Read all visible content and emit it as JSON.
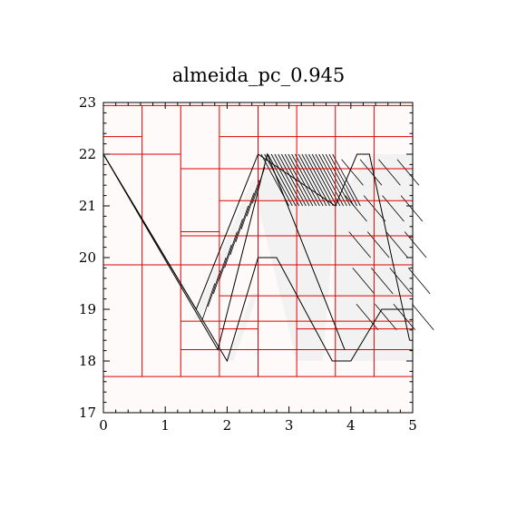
{
  "chart_data": {
    "type": "line",
    "title": "almeida_pc_0.945",
    "xlabel": "",
    "ylabel": "",
    "xlim": [
      0,
      5
    ],
    "ylim": [
      17,
      23
    ],
    "x_ticks": [
      "0",
      "1",
      "2",
      "3",
      "4",
      "5"
    ],
    "y_ticks": [
      "17",
      "18",
      "19",
      "20",
      "21",
      "22",
      "23"
    ],
    "grid": false,
    "legend": "none",
    "colors": {
      "cells": "#dd0000",
      "curves": "#000000",
      "background": "#fffafa",
      "band_fill": "#f2f2f2"
    },
    "cell_boundaries": {
      "vertical_x": [
        0.625,
        1.25,
        1.875,
        2.5,
        3.125,
        3.75,
        4.375
      ],
      "horizontal_segments": [
        {
          "y": 22.94,
          "x": [
            0,
            5
          ]
        },
        {
          "y": 22.34,
          "x": [
            0,
            0.625
          ]
        },
        {
          "y": 22.0,
          "x": [
            0,
            1.25
          ]
        },
        {
          "y": 22.34,
          "x": [
            1.875,
            5
          ]
        },
        {
          "y": 21.72,
          "x": [
            1.25,
            5
          ]
        },
        {
          "y": 21.1,
          "x": [
            1.875,
            5
          ]
        },
        {
          "y": 20.5,
          "x": [
            1.25,
            1.875
          ]
        },
        {
          "y": 20.42,
          "x": [
            1.25,
            5
          ]
        },
        {
          "y": 19.86,
          "x": [
            0,
            5
          ]
        },
        {
          "y": 19.26,
          "x": [
            1.875,
            5
          ]
        },
        {
          "y": 18.77,
          "x": [
            1.25,
            5
          ]
        },
        {
          "y": 18.62,
          "x": [
            1.875,
            2.5
          ]
        },
        {
          "y": 18.62,
          "x": [
            3.125,
            5
          ]
        },
        {
          "y": 18.22,
          "x": [
            1.25,
            5
          ]
        },
        {
          "y": 17.7,
          "x": [
            0,
            5
          ]
        }
      ]
    },
    "series": [
      {
        "x": [
          0,
          1.5,
          2.5,
          3.75
        ],
        "y": [
          22.0,
          19.0,
          22.0,
          21.0
        ]
      },
      {
        "x": [
          0,
          1.85,
          2.65,
          3.9
        ],
        "y": [
          22.0,
          18.22,
          22.0,
          18.22
        ]
      },
      {
        "x": [
          0,
          2.0,
          2.5,
          2.8,
          3.7,
          3.75
        ],
        "y": [
          22.0,
          18.0,
          20.0,
          20.0,
          18.0,
          18.0
        ]
      },
      {
        "x": [
          3.75,
          4.1,
          4.3,
          4.95
        ],
        "y": [
          21.0,
          22.0,
          22.0,
          18.4
        ]
      },
      {
        "x": [
          3.75,
          4.0,
          4.5,
          5.0
        ],
        "y": [
          18.0,
          18.0,
          19.0,
          19.0
        ]
      }
    ],
    "bands": [
      {
        "x": [
          1.45,
          1.55,
          2.5,
          2.4
        ],
        "y": [
          18.8,
          18.8,
          21.5,
          21.5
        ]
      },
      {
        "x": [
          2.0,
          2.1,
          2.5,
          2.4
        ],
        "y": [
          18.0,
          18.0,
          19.3,
          19.3
        ]
      },
      {
        "x": [
          2.5,
          3.5,
          3.75,
          3.55,
          3.125,
          2.5
        ],
        "y": [
          22.0,
          22.0,
          21.0,
          18.0,
          18.0,
          21.0
        ]
      },
      {
        "x": [
          3.75,
          4.3,
          4.6,
          4.75,
          5.0,
          5.0,
          4.4,
          3.75
        ],
        "y": [
          21.0,
          22.0,
          22.0,
          22.0,
          22.0,
          18.0,
          18.0,
          18.0
        ]
      }
    ]
  }
}
